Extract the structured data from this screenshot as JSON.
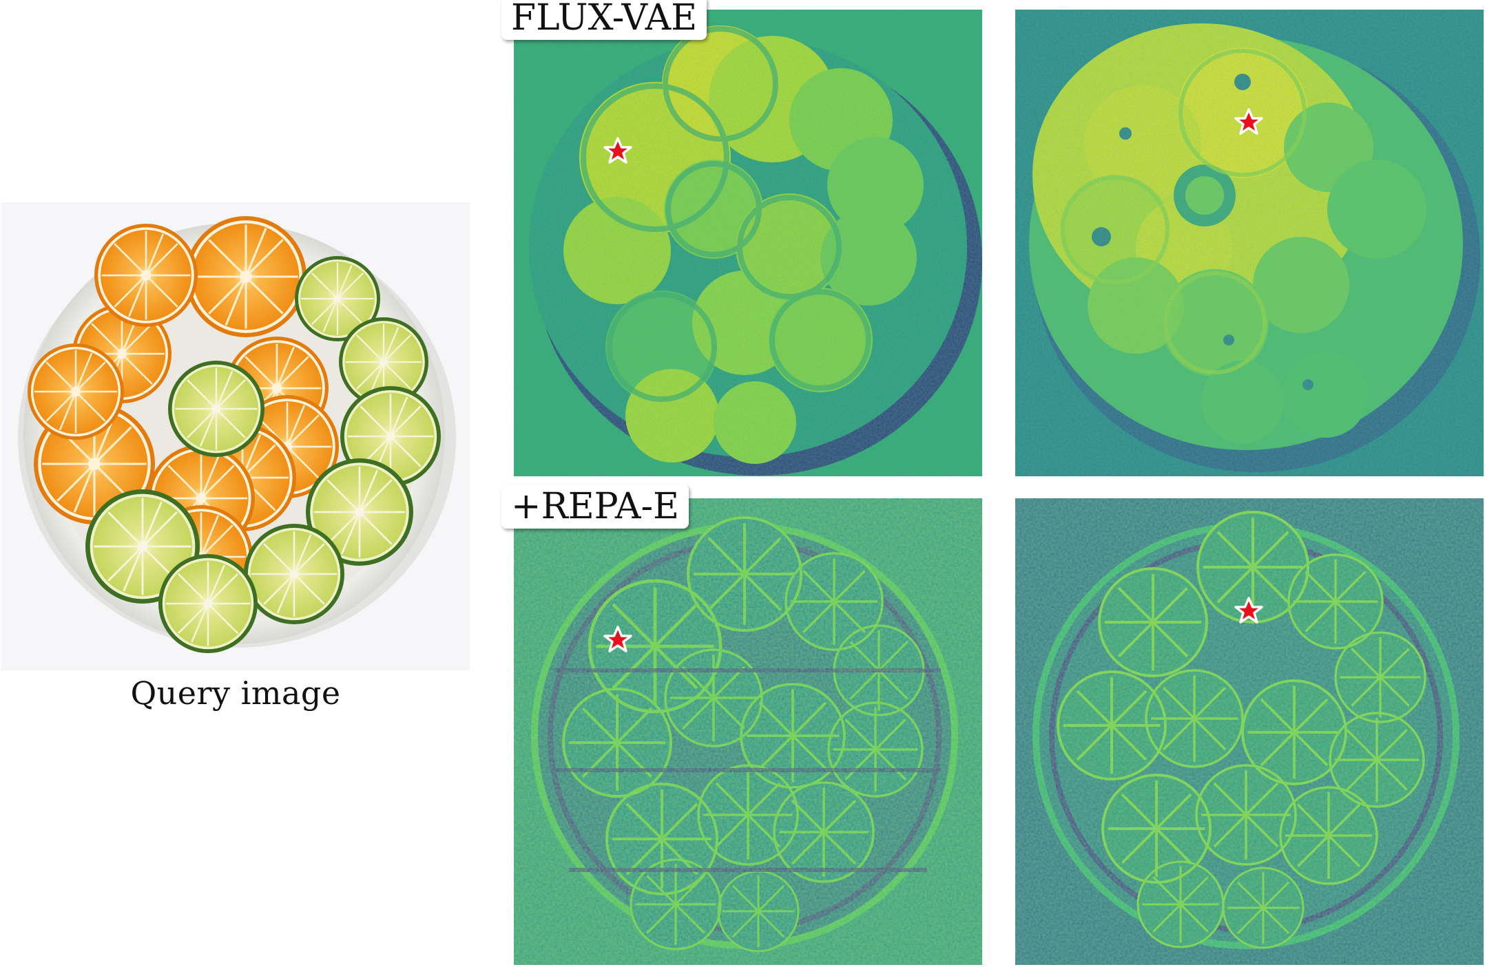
{
  "figure": {
    "query_caption": "Query image",
    "row_labels": [
      "FLUX-VAE",
      "+REPA-E"
    ]
  },
  "colors": {
    "colormap": "viridis",
    "star_fill": "#e8101c",
    "star_stroke": "#ffffff",
    "plate": "#f1f1ee",
    "orange": "#f39a1e",
    "lime": "#b8cf5a",
    "lime_rind": "#4b7a2a"
  },
  "panels": [
    {
      "row": "FLUX-VAE",
      "column": 1,
      "style": "smooth",
      "background": "#2cae7d"
    },
    {
      "row": "FLUX-VAE",
      "column": 2,
      "style": "smooth",
      "background": "#22908d"
    },
    {
      "row": "+REPA-E",
      "column": 1,
      "style": "edges",
      "background": "#2ea384"
    },
    {
      "row": "+REPA-E",
      "column": 2,
      "style": "edges",
      "background": "#2a7e8e"
    }
  ]
}
